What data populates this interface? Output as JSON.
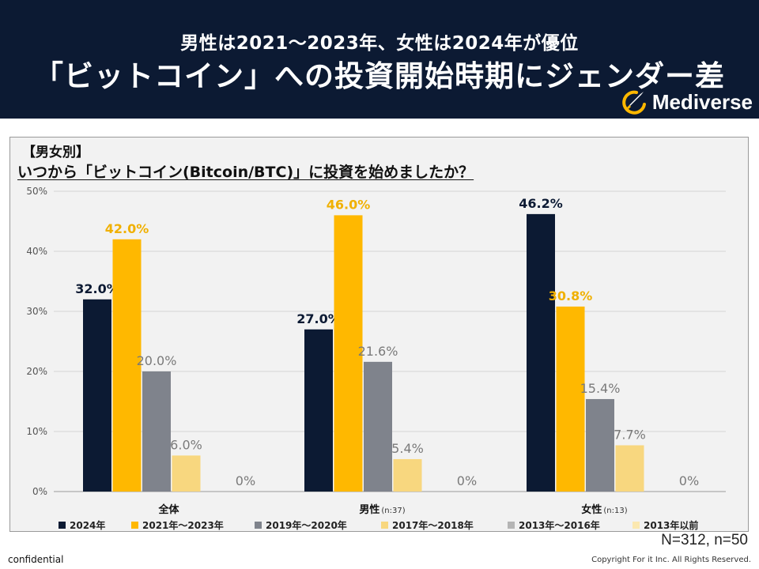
{
  "header": {
    "subtitle": "男性は2021〜2023年、女性は2024年が優位",
    "title": "「ビットコイン」への投資開始時期にジェンダー差",
    "brand": "Mediverse"
  },
  "panel": {
    "segment_label": "【男女別】",
    "question": "いつから「ビットコイン(Bitcoin/BTC)」に投資を始めましたか？"
  },
  "chart_data": {
    "type": "bar",
    "y_ticks": [
      "0%",
      "10%",
      "20%",
      "30%",
      "40%",
      "50%"
    ],
    "ylim": [
      0,
      50
    ],
    "groups": [
      {
        "label": "全体",
        "n": ""
      },
      {
        "label": "男性",
        "n": "(n:37)"
      },
      {
        "label": "女性",
        "n": "(n:13)"
      }
    ],
    "series": [
      {
        "name": "2024年",
        "color": "#0c1a33",
        "values": [
          32.0,
          27.0,
          46.2
        ],
        "labels": [
          "32.0%",
          "27.0%",
          "46.2%"
        ],
        "label_color": "#0c1a33",
        "bold": true
      },
      {
        "name": "2021年〜2023年",
        "color": "#ffb800",
        "values": [
          42.0,
          46.0,
          30.8
        ],
        "labels": [
          "42.0%",
          "46.0%",
          "30.8%"
        ],
        "label_color": "#f0b000",
        "bold": true
      },
      {
        "name": "2019年〜2020年",
        "color": "#7f838c",
        "values": [
          20.0,
          21.6,
          15.4
        ],
        "labels": [
          "20.0%",
          "21.6%",
          "15.4%"
        ],
        "label_color": "#7a7a7a",
        "bold": false
      },
      {
        "name": "2017年〜2018年",
        "color": "#f8d77f",
        "values": [
          6.0,
          5.4,
          7.7
        ],
        "labels": [
          "6.0%",
          "5.4%",
          "7.7%"
        ],
        "label_color": "#7a7a7a",
        "bold": false
      },
      {
        "name": "2013年〜2016年",
        "color": "#b5b5b5",
        "values": [
          0,
          0,
          0
        ],
        "labels": [
          "",
          "",
          ""
        ],
        "label_color": "#7a7a7a",
        "bold": false
      },
      {
        "name": "2013年以前",
        "color": "#fbe8b0",
        "values": [
          0,
          0,
          0
        ],
        "labels": [
          "0%",
          "0%",
          "0%"
        ],
        "label_color": "#7a7a7a",
        "bold": false
      }
    ]
  },
  "sample_note": "N=312, n=50",
  "footer": {
    "left": "confidential",
    "right": "Copyright For it Inc. All Rights Reserved."
  }
}
